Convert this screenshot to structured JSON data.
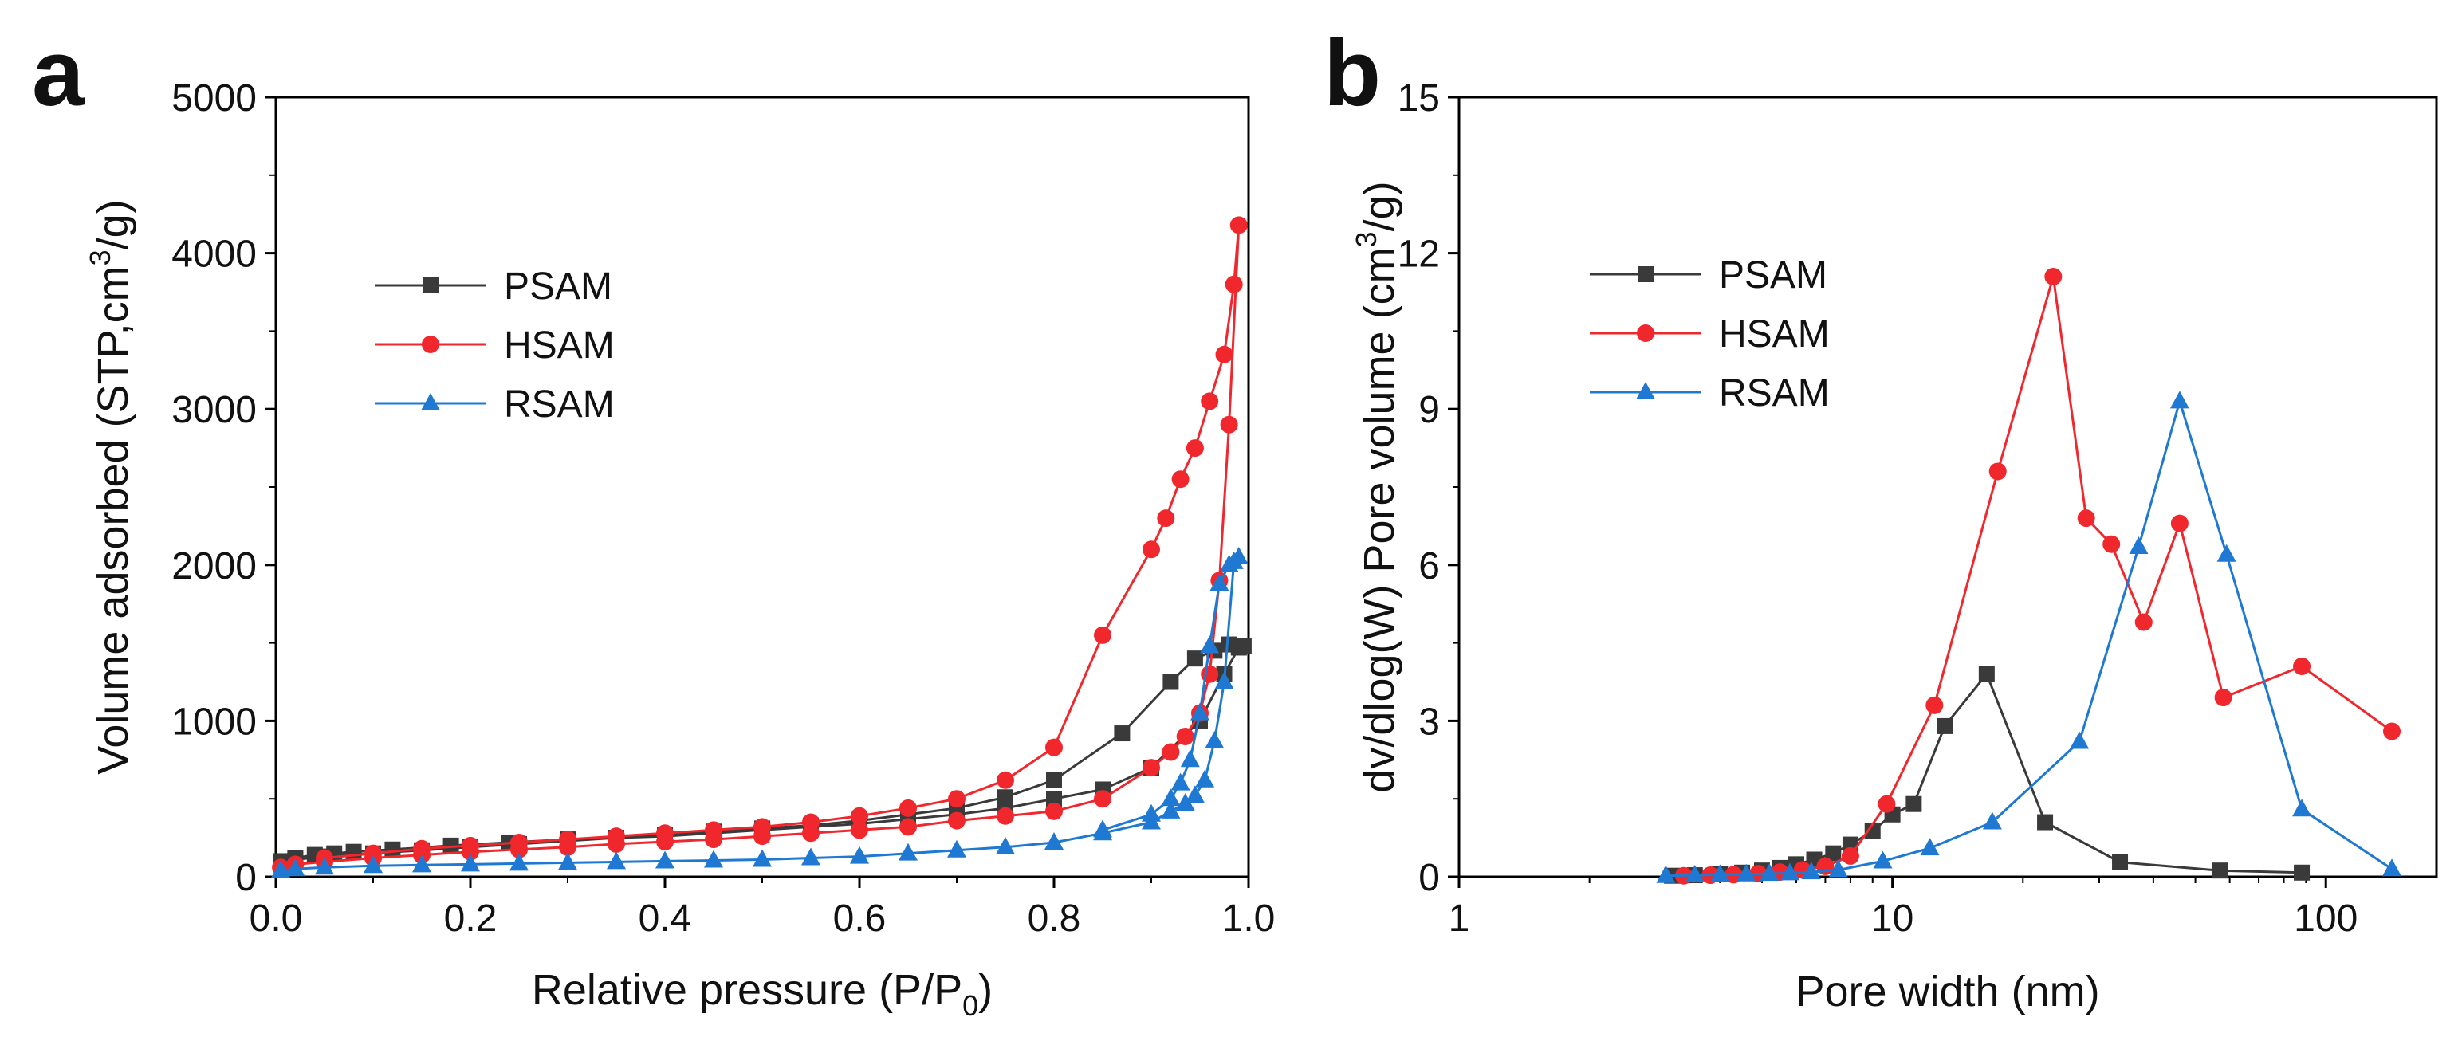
{
  "panels": [
    {
      "letter": "a"
    },
    {
      "letter": "b"
    }
  ],
  "chart_data": [
    {
      "type": "line",
      "panel": "a",
      "title": "",
      "xlabel": "Relative pressure (P/P",
      "xlabel_sub": "0",
      "xlabel_tail": ")",
      "ylabel": "Volume adsorbed (STP,cm",
      "ylabel_sup": "3",
      "ylabel_tail": "/g)",
      "xlim": [
        0,
        1.0
      ],
      "ylim": [
        0,
        5000
      ],
      "xscale": "linear",
      "xticks": [
        0.0,
        0.2,
        0.4,
        0.6,
        0.8,
        1.0
      ],
      "xtick_labels": [
        "0.0",
        "0.2",
        "0.4",
        "0.6",
        "0.8",
        "1.0"
      ],
      "yticks": [
        0,
        1000,
        2000,
        3000,
        4000,
        5000
      ],
      "ytick_labels": [
        "0",
        "1000",
        "2000",
        "3000",
        "4000",
        "5000"
      ],
      "legend_position": "upper-left",
      "series": [
        {
          "name": "PSAM",
          "color": "#3a3a3a",
          "marker": "square",
          "x": [
            0.005,
            0.02,
            0.04,
            0.06,
            0.08,
            0.12,
            0.18,
            0.24,
            0.3,
            0.35,
            0.4,
            0.45,
            0.5,
            0.55,
            0.6,
            0.65,
            0.7,
            0.75,
            0.8,
            0.85,
            0.9,
            0.95,
            0.975,
            0.99,
            0.995,
            0.98,
            0.965,
            0.945,
            0.92,
            0.87,
            0.8,
            0.75,
            0.7,
            0.65,
            0.6,
            0.55,
            0.5,
            0.45,
            0.4,
            0.35,
            0.3,
            0.25,
            0.2,
            0.15,
            0.1,
            0.05,
            0.02
          ],
          "y": [
            100,
            120,
            140,
            150,
            160,
            175,
            200,
            220,
            240,
            250,
            260,
            280,
            300,
            320,
            340,
            370,
            400,
            440,
            500,
            560,
            700,
            1000,
            1300,
            1470,
            1480,
            1490,
            1450,
            1400,
            1250,
            920,
            620,
            510,
            440,
            400,
            360,
            330,
            310,
            290,
            270,
            250,
            230,
            210,
            190,
            170,
            150,
            130,
            110
          ]
        },
        {
          "name": "HSAM",
          "color": "#f0282d",
          "marker": "circle",
          "x": [
            0.005,
            0.02,
            0.05,
            0.1,
            0.15,
            0.2,
            0.25,
            0.3,
            0.35,
            0.4,
            0.45,
            0.5,
            0.55,
            0.6,
            0.65,
            0.7,
            0.75,
            0.8,
            0.85,
            0.9,
            0.92,
            0.935,
            0.95,
            0.96,
            0.97,
            0.98,
            0.99,
            0.985,
            0.975,
            0.96,
            0.945,
            0.93,
            0.915,
            0.9,
            0.85,
            0.8,
            0.75,
            0.7,
            0.65,
            0.6,
            0.55,
            0.5,
            0.45,
            0.4,
            0.35,
            0.3,
            0.25,
            0.2,
            0.15,
            0.1,
            0.05
          ],
          "y": [
            60,
            80,
            95,
            120,
            140,
            160,
            175,
            190,
            210,
            225,
            240,
            260,
            280,
            300,
            320,
            360,
            390,
            420,
            500,
            700,
            800,
            900,
            1050,
            1300,
            1900,
            2900,
            4180,
            3800,
            3350,
            3050,
            2750,
            2550,
            2300,
            2100,
            1550,
            830,
            620,
            500,
            440,
            390,
            350,
            320,
            300,
            280,
            260,
            240,
            220,
            200,
            180,
            150,
            120
          ]
        },
        {
          "name": "RSAM",
          "color": "#1f78d1",
          "marker": "triangle",
          "x": [
            0.005,
            0.02,
            0.05,
            0.1,
            0.15,
            0.2,
            0.25,
            0.3,
            0.35,
            0.4,
            0.45,
            0.5,
            0.55,
            0.6,
            0.65,
            0.7,
            0.75,
            0.8,
            0.85,
            0.9,
            0.92,
            0.935,
            0.945,
            0.955,
            0.965,
            0.975,
            0.985,
            0.99,
            0.98,
            0.97,
            0.96,
            0.95,
            0.94,
            0.93,
            0.92,
            0.9,
            0.85
          ],
          "y": [
            40,
            50,
            60,
            70,
            75,
            80,
            85,
            90,
            95,
            100,
            105,
            110,
            120,
            130,
            150,
            170,
            190,
            220,
            280,
            350,
            420,
            470,
            520,
            620,
            870,
            1250,
            2020,
            2050,
            2000,
            1880,
            1480,
            1050,
            750,
            600,
            500,
            400,
            300
          ]
        }
      ]
    },
    {
      "type": "line",
      "panel": "b",
      "title": "",
      "xlabel": "Pore width (nm)",
      "ylabel": "dv/dlog(W) Pore volume (cm",
      "ylabel_sup": "3",
      "ylabel_tail": "/g)",
      "xscale": "log",
      "xlim": [
        1,
        180
      ],
      "ylim": [
        0,
        15
      ],
      "xticks": [
        1,
        10,
        100
      ],
      "xtick_labels": [
        "1",
        "10",
        "100"
      ],
      "yticks": [
        0,
        3,
        6,
        9,
        12,
        15
      ],
      "ytick_labels": [
        "0",
        "3",
        "6",
        "9",
        "12",
        "15"
      ],
      "legend_position": "upper-left",
      "series": [
        {
          "name": "PSAM",
          "color": "#3a3a3a",
          "marker": "square",
          "x": [
            3.1,
            3.5,
            4.0,
            4.5,
            5.0,
            5.5,
            6.0,
            6.6,
            7.3,
            8.0,
            9.0,
            10.0,
            11.2,
            13.2,
            16.5,
            22.5,
            33.5,
            57.0,
            88.0
          ],
          "y": [
            0.02,
            0.03,
            0.05,
            0.08,
            0.12,
            0.17,
            0.24,
            0.33,
            0.45,
            0.62,
            0.88,
            1.2,
            1.4,
            2.9,
            3.9,
            1.05,
            0.28,
            0.12,
            0.08
          ]
        },
        {
          "name": "HSAM",
          "color": "#f0282d",
          "marker": "circle",
          "x": [
            3.3,
            3.8,
            4.3,
            4.9,
            5.5,
            6.2,
            7.0,
            8.0,
            9.7,
            12.5,
            17.5,
            23.5,
            28.0,
            32.0,
            38.0,
            46.0,
            58.0,
            88.0,
            142.0
          ],
          "y": [
            0.02,
            0.03,
            0.04,
            0.06,
            0.09,
            0.13,
            0.2,
            0.4,
            1.4,
            3.3,
            7.8,
            11.55,
            6.9,
            6.4,
            4.9,
            6.8,
            3.45,
            4.05,
            2.8
          ]
        },
        {
          "name": "RSAM",
          "color": "#1f78d1",
          "marker": "triangle",
          "x": [
            3.0,
            3.5,
            4.0,
            4.6,
            5.2,
            5.8,
            6.5,
            7.5,
            9.5,
            12.2,
            17.0,
            27.0,
            37.0,
            46.0,
            59.0,
            88.0,
            142.0
          ],
          "y": [
            0.02,
            0.03,
            0.04,
            0.05,
            0.06,
            0.07,
            0.09,
            0.13,
            0.3,
            0.55,
            1.05,
            2.6,
            6.35,
            9.15,
            6.2,
            1.3,
            0.15
          ]
        }
      ]
    }
  ]
}
